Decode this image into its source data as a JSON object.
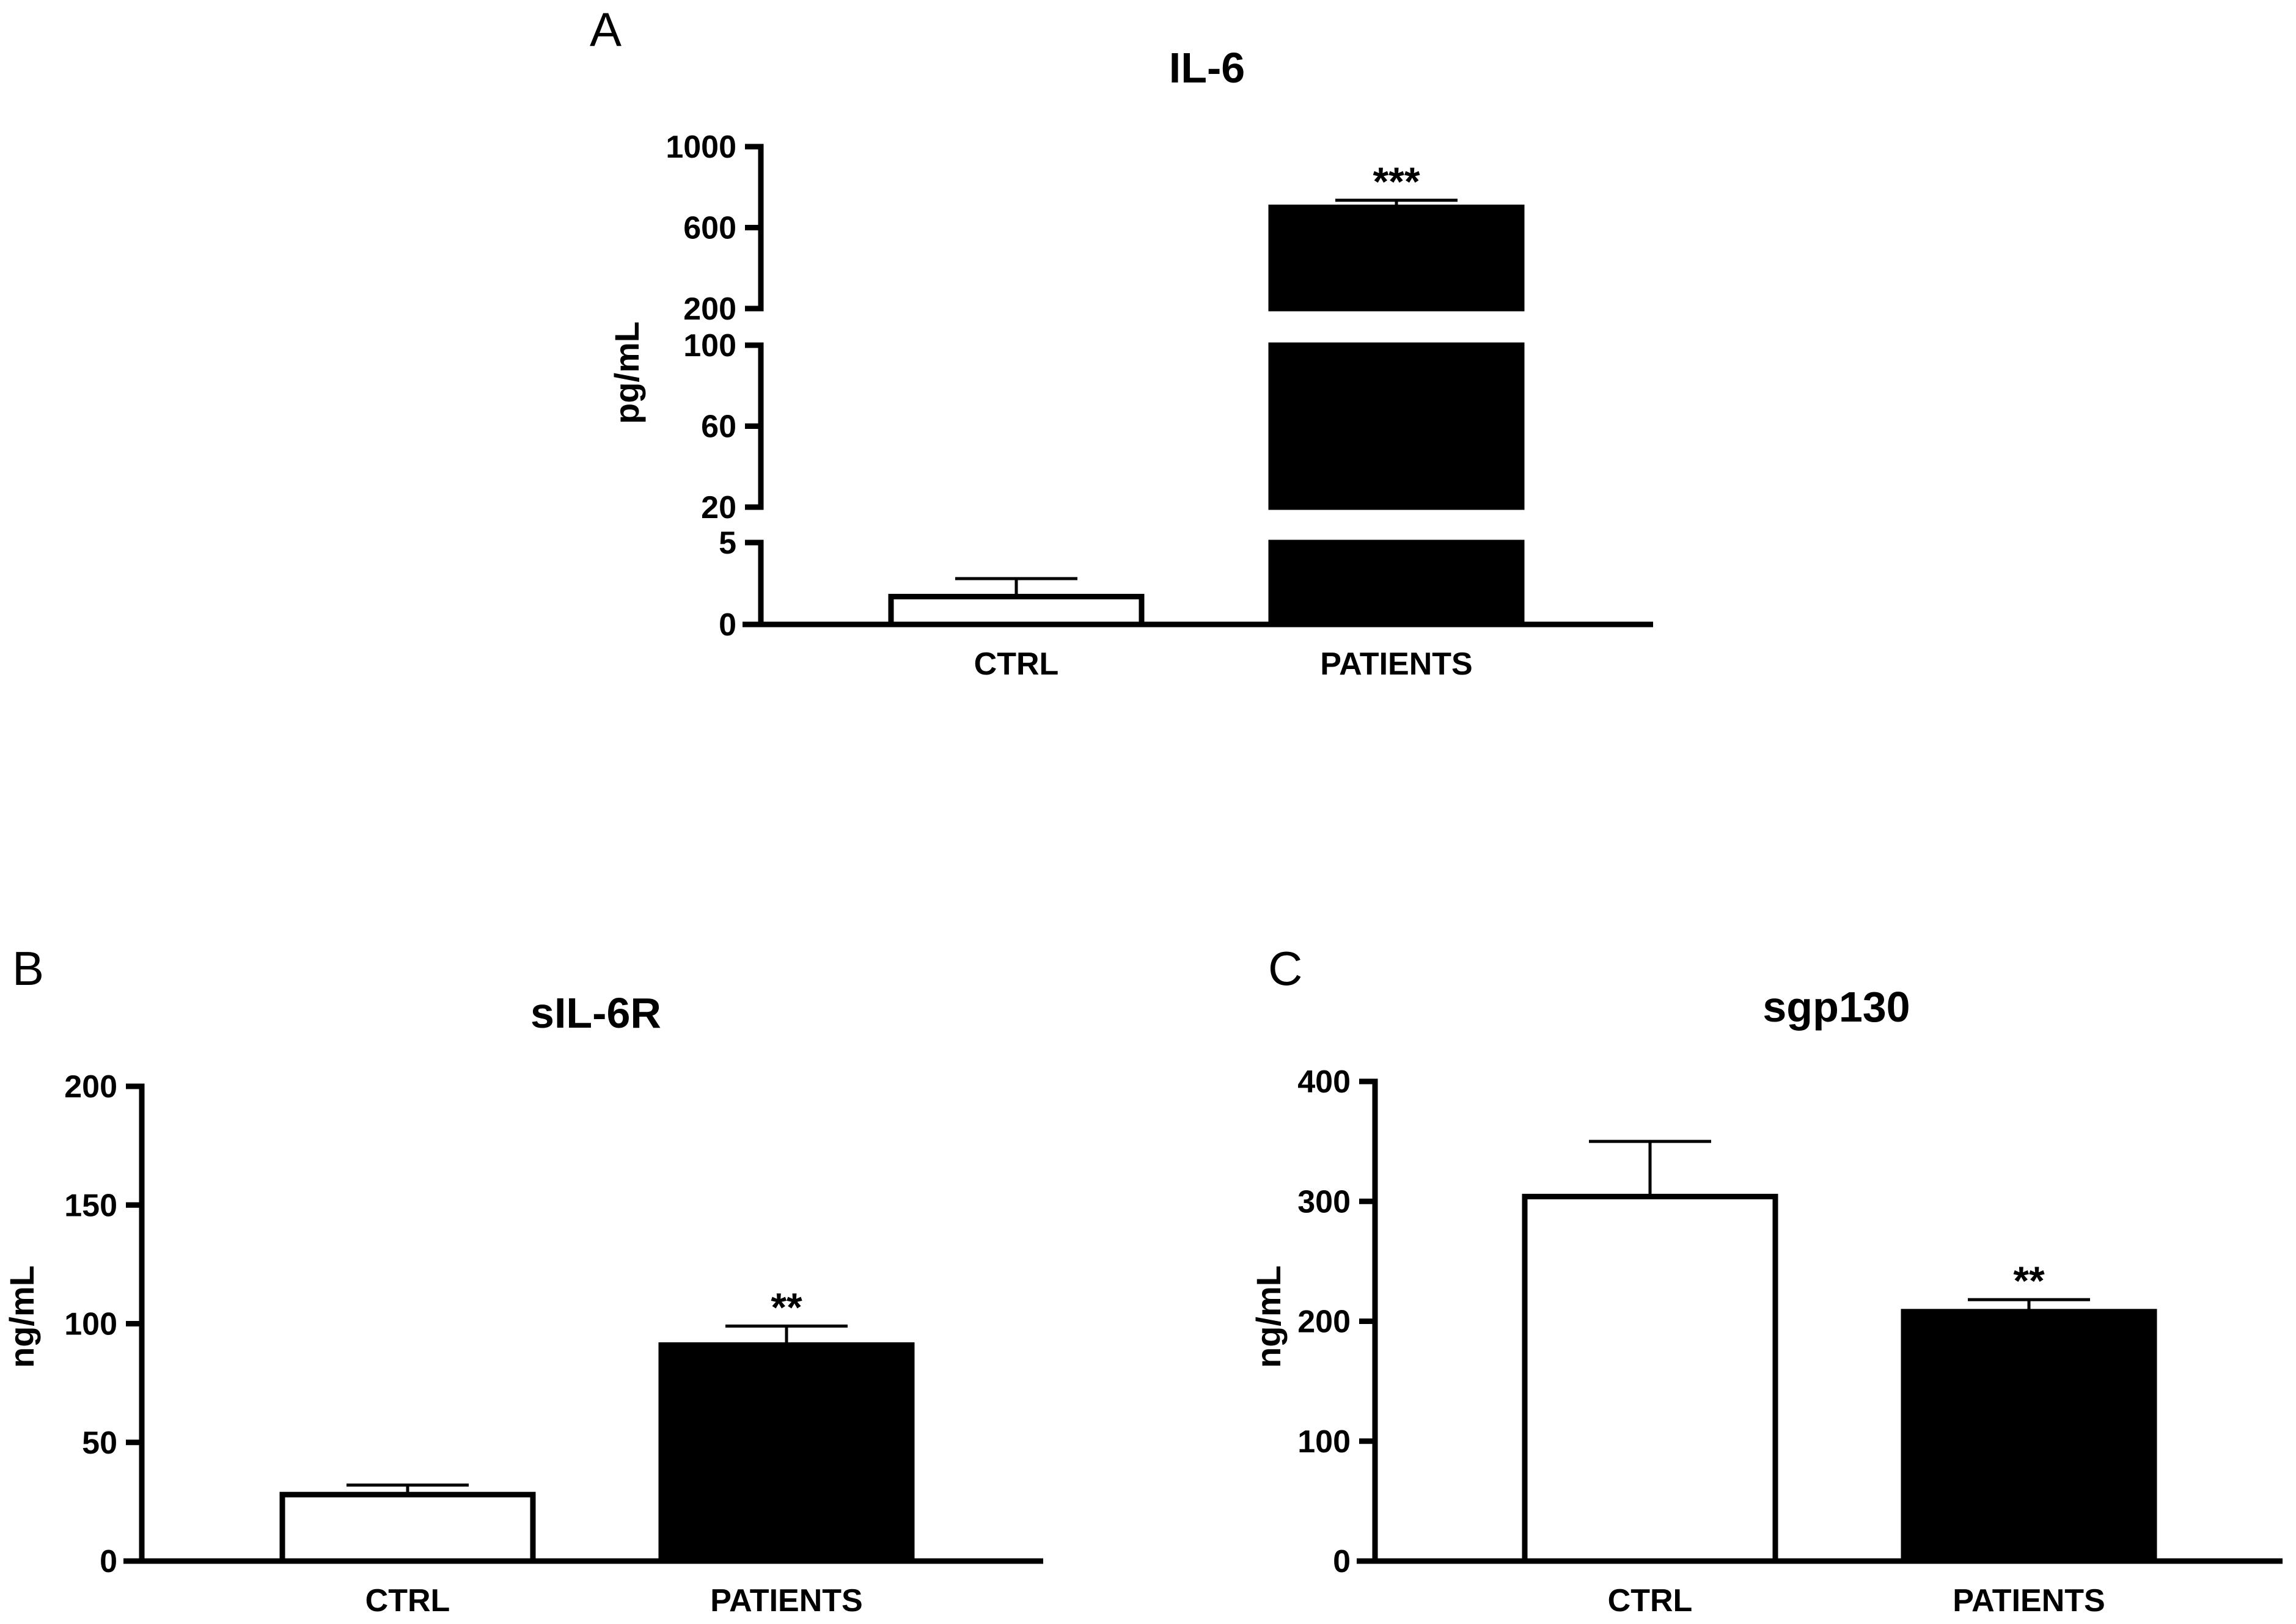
{
  "chart_data": [
    {
      "panel": "A",
      "type": "bar",
      "title": "IL-6",
      "ylabel": "pg/mL",
      "categories": [
        "CTRL",
        "PATIENTS"
      ],
      "values": [
        1.7,
        700
      ],
      "error_upper": [
        2.8,
        735
      ],
      "bar_colors": [
        "#ffffff",
        "#000000"
      ],
      "significance": [
        "",
        "***"
      ],
      "y_axis_break": true,
      "y_segments": [
        {
          "range": [
            0,
            5
          ],
          "ticks": [
            "0",
            "5"
          ]
        },
        {
          "range": [
            20,
            100
          ],
          "ticks": [
            "20",
            "60",
            "100"
          ]
        },
        {
          "range": [
            200,
            1000
          ],
          "ticks": [
            "200",
            "600",
            "1000"
          ]
        }
      ],
      "grid": false,
      "legend": "none"
    },
    {
      "panel": "B",
      "type": "bar",
      "title": "sIL-6R",
      "ylabel": "ng/mL",
      "categories": [
        "CTRL",
        "PATIENTS"
      ],
      "values": [
        28,
        91
      ],
      "error_upper": [
        32,
        99
      ],
      "bar_colors": [
        "#ffffff",
        "#000000"
      ],
      "significance": [
        "",
        "**"
      ],
      "ylim": [
        0,
        200
      ],
      "yticks": [
        "0",
        "50",
        "100",
        "150",
        "200"
      ],
      "grid": false,
      "legend": "none"
    },
    {
      "panel": "C",
      "type": "bar",
      "title": "sgp130",
      "ylabel": "ng/mL",
      "categories": [
        "CTRL",
        "PATIENTS"
      ],
      "values": [
        304,
        208
      ],
      "error_upper": [
        350,
        218
      ],
      "bar_colors": [
        "#ffffff",
        "#000000"
      ],
      "significance": [
        "",
        "**"
      ],
      "ylim": [
        0,
        400
      ],
      "yticks": [
        "0",
        "100",
        "200",
        "300",
        "400"
      ],
      "grid": false,
      "legend": "none"
    }
  ]
}
